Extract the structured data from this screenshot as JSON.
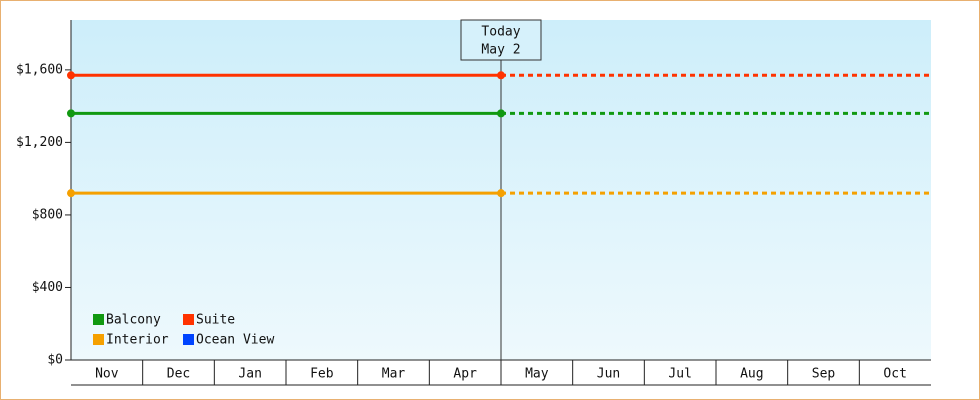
{
  "chart_data": {
    "type": "line",
    "categories": [
      "Nov",
      "Dec",
      "Jan",
      "Feb",
      "Mar",
      "Apr",
      "May",
      "Jun",
      "Jul",
      "Aug",
      "Sep",
      "Oct"
    ],
    "series": [
      {
        "name": "Balcony",
        "color": "#119911",
        "value": 1360
      },
      {
        "name": "Suite",
        "color": "#ff3300",
        "value": 1570
      },
      {
        "name": "Interior",
        "color": "#f5a000",
        "value": 920
      },
      {
        "name": "Ocean View",
        "color": "#0044ff",
        "value": null
      }
    ],
    "annotation": {
      "lines": [
        "Today",
        "May 2"
      ],
      "category": "May"
    },
    "ylim": [
      0,
      1875
    ],
    "yticks": [
      {
        "value": 0,
        "label": "$0"
      },
      {
        "value": 400,
        "label": "$400"
      },
      {
        "value": 800,
        "label": "$800"
      },
      {
        "value": 1200,
        "label": "$1,200"
      },
      {
        "value": 1600,
        "label": "$1,600"
      }
    ],
    "legend": "bottom-left"
  }
}
